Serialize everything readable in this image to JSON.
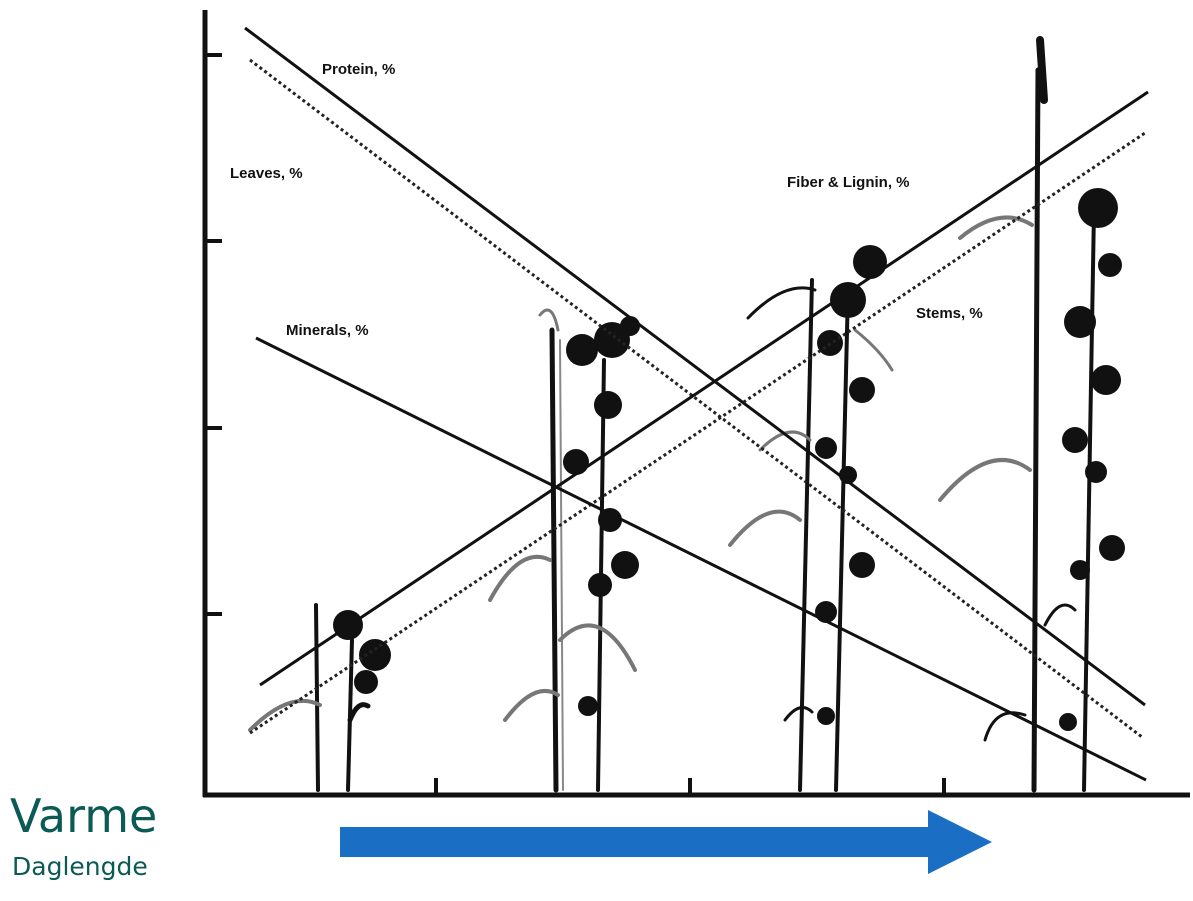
{
  "series": {
    "protein": "Protein, %",
    "leaves": "Leaves, %",
    "fiber": "Fiber & Lignin, %",
    "minerals": "Minerals, %",
    "stems": "Stems, %"
  },
  "trend_labels": {
    "primary": "Varme",
    "secondary": "Daglengde"
  },
  "colors": {
    "ink": "#111111",
    "arrow": "#1a6fc4",
    "label_teal": "#0c5a55"
  },
  "icons": {
    "arrow": "right-arrow-icon",
    "plants": "plant-silhouette-icon"
  }
}
